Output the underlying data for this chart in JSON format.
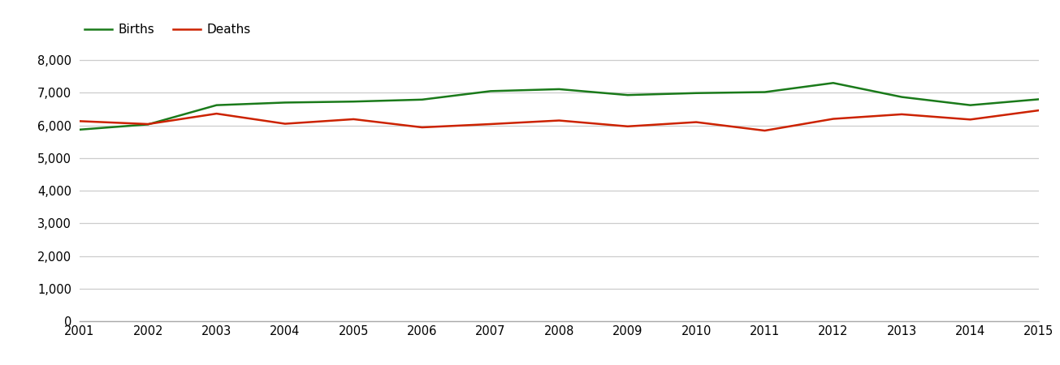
{
  "years": [
    2001,
    2002,
    2003,
    2004,
    2005,
    2006,
    2007,
    2008,
    2009,
    2010,
    2011,
    2012,
    2013,
    2014,
    2015
  ],
  "births": [
    5870,
    6030,
    6620,
    6700,
    6730,
    6790,
    7050,
    7110,
    6930,
    6990,
    7020,
    7300,
    6870,
    6620,
    6800
  ],
  "deaths": [
    6130,
    6040,
    6360,
    6050,
    6190,
    5940,
    6040,
    6150,
    5970,
    6100,
    5840,
    6200,
    6340,
    6180,
    6460
  ],
  "births_color": "#1a7a1a",
  "deaths_color": "#cc2200",
  "line_width": 1.8,
  "ylim": [
    0,
    8500
  ],
  "yticks": [
    0,
    1000,
    2000,
    3000,
    4000,
    5000,
    6000,
    7000,
    8000
  ],
  "background_color": "#ffffff",
  "grid_color": "#cccccc",
  "legend_labels": [
    "Births",
    "Deaths"
  ],
  "figsize": [
    13.05,
    4.5
  ]
}
